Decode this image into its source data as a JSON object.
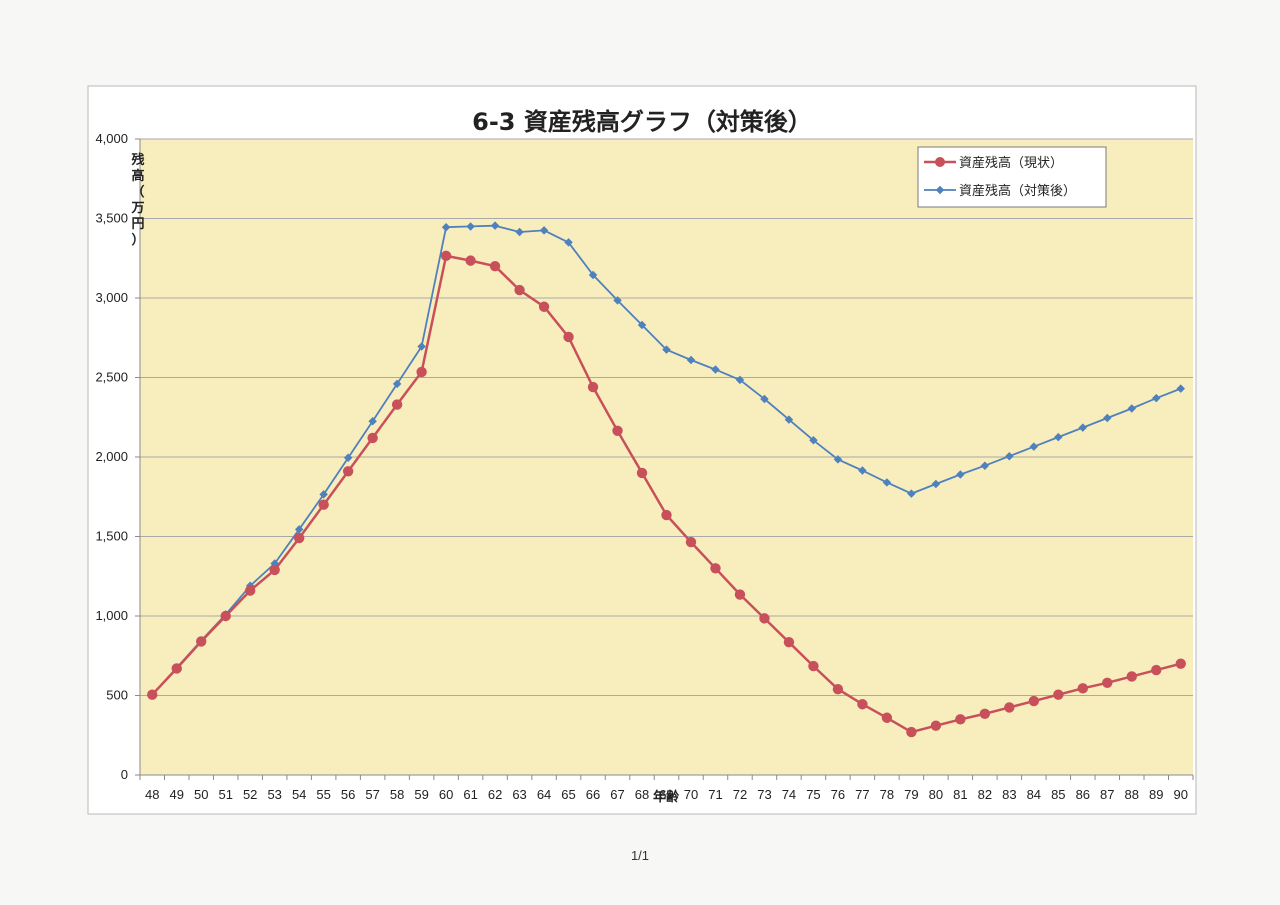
{
  "page": {
    "page_number": "1/1"
  },
  "chart_data": {
    "type": "line",
    "title": "6-3 資産残高グラフ（対策後）",
    "xlabel": "年齢",
    "ylabel": "残高（万円）",
    "categories": [
      "48",
      "49",
      "50",
      "51",
      "52",
      "53",
      "54",
      "55",
      "56",
      "57",
      "58",
      "59",
      "60",
      "61",
      "62",
      "63",
      "64",
      "65",
      "66",
      "67",
      "68",
      "69",
      "70",
      "71",
      "72",
      "73",
      "74",
      "75",
      "76",
      "77",
      "78",
      "79",
      "80",
      "81",
      "82",
      "83",
      "84",
      "85",
      "86",
      "87",
      "88",
      "89",
      "90"
    ],
    "ylim": [
      0,
      4000
    ],
    "yticks": [
      0,
      500,
      1000,
      1500,
      2000,
      2500,
      3000,
      3500,
      4000
    ],
    "ytick_labels": [
      "0",
      "500",
      "1,000",
      "1,500",
      "2,000",
      "2,500",
      "3,000",
      "3,500",
      "4,000"
    ],
    "grid": true,
    "legend_position": "top-right",
    "background_color": "#f8eebd",
    "series": [
      {
        "name": "資産残高（現状）",
        "color": "#c8505a",
        "marker": "circle",
        "values": [
          505,
          670,
          840,
          1000,
          1160,
          1290,
          1490,
          1700,
          1910,
          2120,
          2330,
          2535,
          3265,
          3235,
          3200,
          3050,
          2945,
          2755,
          2440,
          2165,
          1900,
          1635,
          1465,
          1300,
          1135,
          985,
          835,
          685,
          540,
          445,
          360,
          270,
          310,
          350,
          385,
          425,
          465,
          505,
          545,
          580,
          620,
          660,
          700
        ]
      },
      {
        "name": "資産残高（対策後）",
        "color": "#4f81bd",
        "marker": "diamond",
        "values": [
          505,
          675,
          845,
          1010,
          1190,
          1330,
          1545,
          1765,
          1995,
          2225,
          2460,
          2695,
          3445,
          3450,
          3455,
          3415,
          3425,
          3350,
          3145,
          2985,
          2830,
          2675,
          2610,
          2550,
          2485,
          2365,
          2235,
          2105,
          1985,
          1915,
          1840,
          1770,
          1830,
          1890,
          1945,
          2005,
          2065,
          2125,
          2185,
          2245,
          2305,
          2370,
          2430
        ]
      }
    ]
  }
}
